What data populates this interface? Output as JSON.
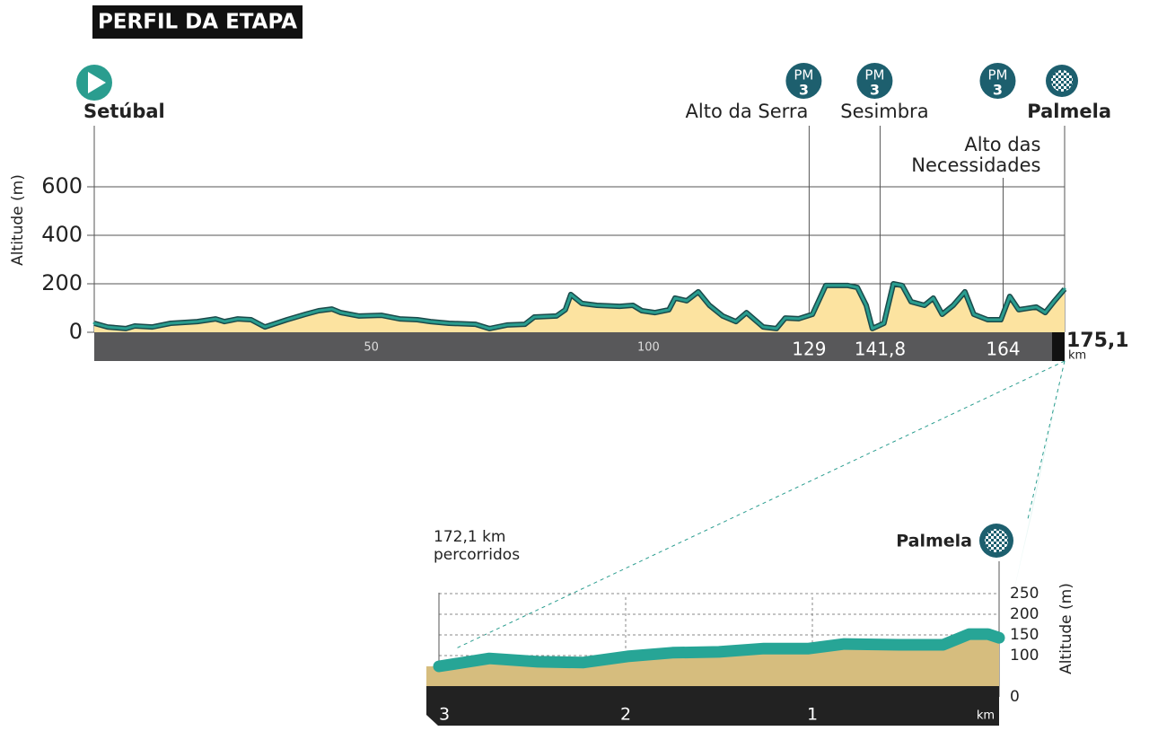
{
  "chart_data": [
    {
      "type": "area",
      "title": "PERFIL DA ETAPA",
      "y_label": "Altitude (m)",
      "x": [
        0,
        2.4,
        5.7,
        7.3,
        10.5,
        13.8,
        18.6,
        21.9,
        23.5,
        25.9,
        28.3,
        30.8,
        34.8,
        38.1,
        40.5,
        42.9,
        44.5,
        47.8,
        51.8,
        55.1,
        58.3,
        60.7,
        64,
        68.8,
        71.3,
        74.5,
        77.7,
        79.4,
        83.4,
        85,
        86,
        88,
        90.7,
        94.8,
        97.2,
        98.8,
        101.2,
        103.7,
        104.8,
        106.9,
        109,
        111,
        113.4,
        115.8,
        117.7,
        120.7,
        123.1,
        124.7,
        127.1,
        129.6,
        132,
        136,
        137.7,
        139.3,
        140.4,
        142.5,
        144.2,
        145.8,
        147.4,
        149.8,
        151.4,
        153,
        155,
        157.1,
        158.7,
        161.2,
        163.6,
        165.2,
        166.8,
        170,
        171.6,
        173.3,
        175.1
      ],
      "values": [
        37,
        22,
        15,
        26,
        22,
        37,
        44,
        55,
        44,
        55,
        52,
        22,
        52,
        74,
        89,
        96,
        81,
        67,
        70,
        55,
        52,
        44,
        37,
        33,
        15,
        30,
        33,
        63,
        67,
        93,
        156,
        119,
        111,
        107,
        111,
        89,
        81,
        93,
        141,
        130,
        167,
        111,
        67,
        44,
        81,
        22,
        15,
        59,
        56,
        74,
        193,
        193,
        185,
        111,
        15,
        37,
        200,
        193,
        126,
        111,
        141,
        74,
        111,
        167,
        74,
        52,
        52,
        148,
        93,
        104,
        81,
        130,
        178
      ],
      "color": "#fce3a0",
      "line_color": "#2a9d8f",
      "xlim": [
        0,
        175.1
      ],
      "ylim": [
        0,
        700
      ],
      "yticks": [
        0,
        200,
        400,
        600
      ],
      "xticks": [
        50,
        100
      ],
      "grid": true,
      "start": {
        "name": "Setúbal",
        "km": 0
      },
      "finish": {
        "name": "Palmela",
        "km": {
          "value": 175.1,
          "label": "175,1"
        },
        "unit": "km"
      },
      "climbs": [
        {
          "name": [
            "Alto da Serra"
          ],
          "km": 129,
          "category": [
            "PM",
            "3"
          ]
        },
        {
          "name": [
            "Sesimbra"
          ],
          "km": {
            "value": 141.8,
            "label": "141,8"
          },
          "category": [
            "PM",
            "3"
          ]
        },
        {
          "name": [
            "Alto das",
            "Necessidades"
          ],
          "km": 164,
          "category": [
            "PM",
            "3"
          ]
        }
      ]
    },
    {
      "type": "area",
      "annotation": [
        "172,1 km",
        "percorridos"
      ],
      "finish": "Palmela",
      "y_label": "Altitude (m)",
      "x": [
        3.0,
        2.73,
        2.47,
        2.23,
        1.99,
        1.75,
        1.5,
        1.26,
        1.02,
        0.83,
        0.54,
        0.3,
        0.16,
        0.06,
        0
      ],
      "values": [
        74,
        93,
        85,
        83,
        98,
        107,
        109,
        117,
        117,
        128,
        126,
        126,
        152,
        152,
        143
      ],
      "color": "#d6bd7e",
      "line_color": "#27a596",
      "xlim": [
        3,
        0
      ],
      "ylim": [
        0,
        250
      ],
      "yticks": [
        0,
        100,
        150,
        200,
        250
      ],
      "xticks": [
        3,
        2,
        1
      ],
      "x_unit": "km",
      "grid": true
    }
  ]
}
